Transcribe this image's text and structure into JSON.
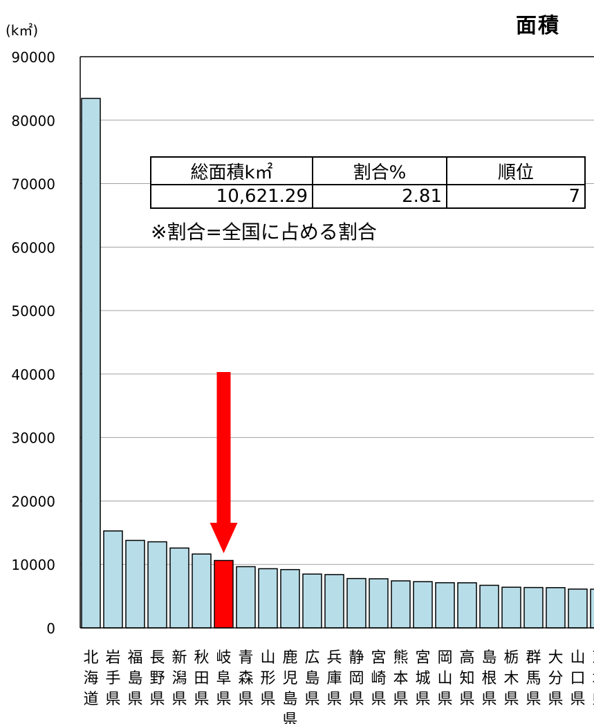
{
  "unit_label": "(k㎡)",
  "title": "面積",
  "info_table": {
    "headers": [
      "総面積k㎡",
      "割合%",
      "順位"
    ],
    "values": [
      "10,621.29",
      "2.81",
      "7"
    ]
  },
  "note": "※割合=全国に占める割合",
  "chart_data": {
    "type": "bar",
    "title": "面積",
    "ylabel": "(k㎡)",
    "xlabel": "",
    "ylim": [
      0,
      90000
    ],
    "yticks": [
      0,
      10000,
      20000,
      30000,
      40000,
      50000,
      60000,
      70000,
      80000,
      90000
    ],
    "grid": true,
    "categories": [
      "北海道",
      "岩手県",
      "福島県",
      "長野県",
      "新潟県",
      "秋田県",
      "岐阜県",
      "青森県",
      "山形県",
      "鹿児島県",
      "広島県",
      "兵庫県",
      "静岡県",
      "宮崎県",
      "熊本県",
      "宮城県",
      "岡山県",
      "高知県",
      "島根県",
      "栃木県",
      "群馬県",
      "大分県",
      "山口県",
      "茨城県"
    ],
    "values": [
      83424,
      15275,
      13784,
      13562,
      12584,
      11638,
      10621,
      9646,
      9323,
      9187,
      8479,
      8401,
      7777,
      7735,
      7409,
      7282,
      7114,
      7104,
      6708,
      6408,
      6362,
      6341,
      6113,
      6097
    ],
    "highlight_index": 6,
    "colors": {
      "bar": "#b7dde8",
      "highlight": "#ff0000",
      "arrow": "#ff0000",
      "grid": "#a0a0a0"
    }
  }
}
